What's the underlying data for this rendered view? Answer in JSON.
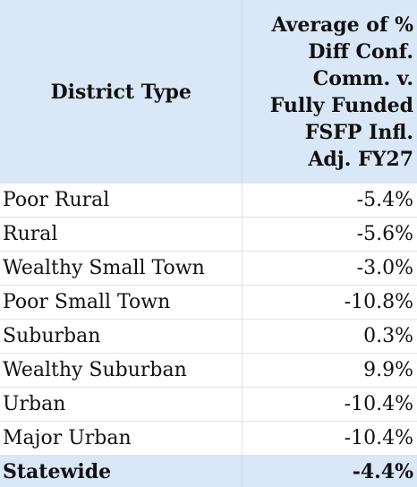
{
  "table": {
    "header": {
      "col1": "District Type",
      "col2": "Average of %\nDiff Conf.\nComm. v.\nFully Funded\nFSFP Infl.\nAdj. FY27"
    },
    "rows": [
      {
        "label": "Poor Rural",
        "value": "-5.4%"
      },
      {
        "label": "Rural",
        "value": "-5.6%"
      },
      {
        "label": "Wealthy Small Town",
        "value": "-3.0%"
      },
      {
        "label": "Poor Small Town",
        "value": "-10.8%"
      },
      {
        "label": "Suburban",
        "value": "0.3%"
      },
      {
        "label": "Wealthy Suburban",
        "value": "9.9%"
      },
      {
        "label": "Urban",
        "value": "-10.4%"
      },
      {
        "label": "Major Urban",
        "value": "-10.4%"
      }
    ],
    "total": {
      "label": "Statewide",
      "value": "-4.4%"
    }
  },
  "colors": {
    "header_bg": "#d9e7f6",
    "row_bg": "#ffffff",
    "grid": "#e2e2e2"
  }
}
